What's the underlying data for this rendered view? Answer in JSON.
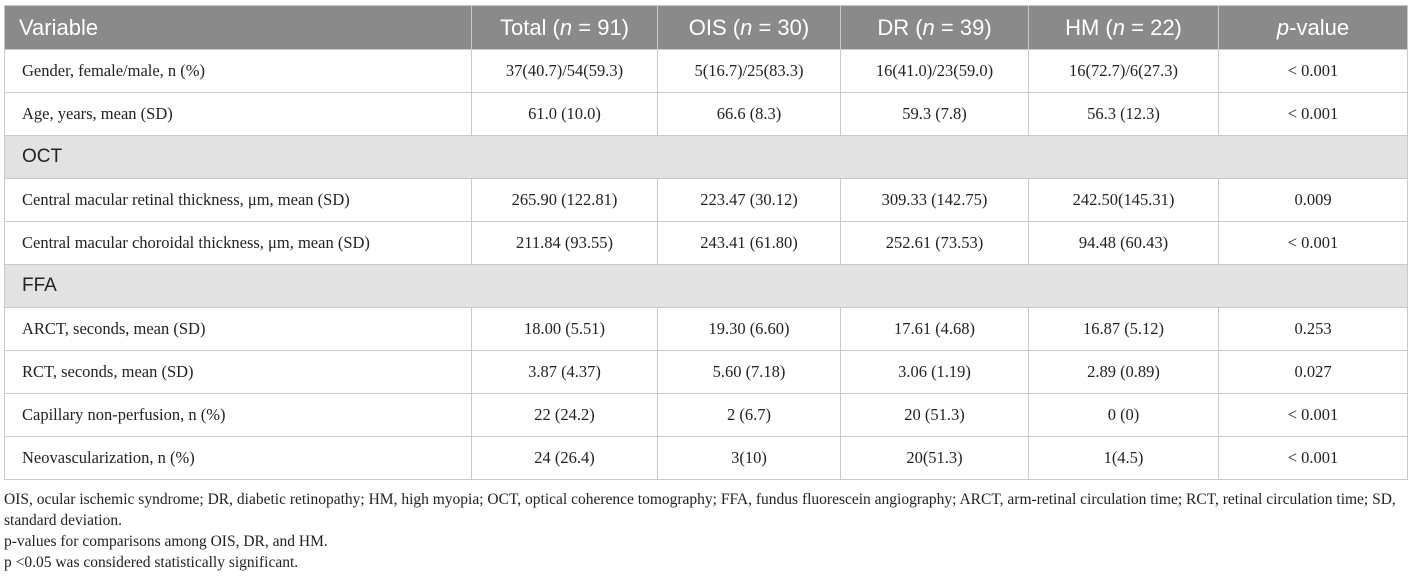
{
  "table": {
    "headers": [
      {
        "pre": "Variable",
        "it": "",
        "post": ""
      },
      {
        "pre": "Total (",
        "it": "n",
        "post": " = 91)"
      },
      {
        "pre": "OIS (",
        "it": "n",
        "post": " = 30)"
      },
      {
        "pre": "DR (",
        "it": "n",
        "post": " = 39)"
      },
      {
        "pre": "HM (",
        "it": "n",
        "post": " = 22)"
      },
      {
        "pre": "",
        "it": "p",
        "post": "-value"
      }
    ],
    "rows": [
      {
        "type": "data",
        "cells": [
          "Gender, female/male, n (%)",
          "37(40.7)/54(59.3)",
          "5(16.7)/25(83.3)",
          "16(41.0)/23(59.0)",
          "16(72.7)/6(27.3)",
          "< 0.001"
        ]
      },
      {
        "type": "data",
        "cells": [
          "Age, years, mean (SD)",
          "61.0 (10.0)",
          "66.6 (8.3)",
          "59.3 (7.8)",
          "56.3 (12.3)",
          "< 0.001"
        ]
      },
      {
        "type": "section",
        "label": "OCT"
      },
      {
        "type": "data",
        "cells": [
          "Central macular retinal thickness, μm, mean (SD)",
          "265.90 (122.81)",
          "223.47 (30.12)",
          "309.33 (142.75)",
          "242.50(145.31)",
          "0.009"
        ]
      },
      {
        "type": "data",
        "cells": [
          "Central macular choroidal thickness, μm, mean (SD)",
          "211.84 (93.55)",
          "243.41 (61.80)",
          "252.61 (73.53)",
          "94.48 (60.43)",
          "< 0.001"
        ]
      },
      {
        "type": "section",
        "label": "FFA"
      },
      {
        "type": "data",
        "cells": [
          "ARCT, seconds, mean (SD)",
          "18.00 (5.51)",
          "19.30 (6.60)",
          "17.61 (4.68)",
          "16.87 (5.12)",
          "0.253"
        ]
      },
      {
        "type": "data",
        "cells": [
          "RCT, seconds, mean (SD)",
          "3.87 (4.37)",
          "5.60 (7.18)",
          "3.06 (1.19)",
          "2.89 (0.89)",
          "0.027"
        ]
      },
      {
        "type": "data",
        "cells": [
          "Capillary non-perfusion, n (%)",
          "22 (24.2)",
          "2 (6.7)",
          "20 (51.3)",
          "0 (0)",
          "< 0.001"
        ]
      },
      {
        "type": "data",
        "cells": [
          "Neovascularization, n (%)",
          "24 (26.4)",
          "3(10)",
          "20(51.3)",
          "1(4.5)",
          "< 0.001"
        ]
      }
    ]
  },
  "footnotes": [
    "OIS, ocular ischemic syndrome; DR, diabetic retinopathy; HM, high myopia; OCT, optical coherence tomography; FFA, fundus fluorescein angiography; ARCT, arm-retinal circulation time; RCT, retinal circulation time; SD, standard deviation.",
    "p-values for comparisons among OIS, DR, and HM.",
    "p <0.05 was considered statistically significant."
  ]
}
